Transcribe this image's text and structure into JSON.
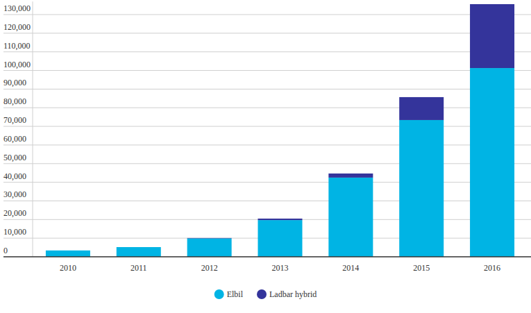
{
  "chart_data": {
    "type": "bar",
    "stacked": true,
    "grid": true,
    "legend": "bottom",
    "categories": [
      "2010",
      "2011",
      "2012",
      "2013",
      "2014",
      "2015",
      "2016"
    ],
    "series": [
      {
        "name": "Elbil",
        "color": "#00b4e4",
        "values": [
          3400,
          5200,
          9900,
          19700,
          42500,
          73400,
          101300
        ]
      },
      {
        "name": "Ladbar hybrid",
        "color": "#34349b",
        "values": [
          0,
          0,
          200,
          800,
          2200,
          12300,
          34300
        ]
      }
    ],
    "ylim": [
      0,
      137000
    ],
    "yticks": [
      0,
      {
        "value": 10000,
        "label": "10,000"
      },
      {
        "value": 20000,
        "label": "20,000"
      },
      {
        "value": 30000,
        "label": "30,000"
      },
      {
        "value": 40000,
        "label": "40,000"
      },
      {
        "value": 50000,
        "label": "50,000"
      },
      {
        "value": 60000,
        "label": "60,000"
      },
      {
        "value": 70000,
        "label": "70,000"
      },
      {
        "value": 80000,
        "label": "80,000"
      },
      {
        "value": 90000,
        "label": "90,000"
      },
      {
        "value": 100000,
        "label": "100,000"
      },
      {
        "value": 110000,
        "label": "110,000"
      },
      {
        "value": 120000,
        "label": "120,000"
      },
      {
        "value": 130000,
        "label": "130,000"
      }
    ]
  }
}
